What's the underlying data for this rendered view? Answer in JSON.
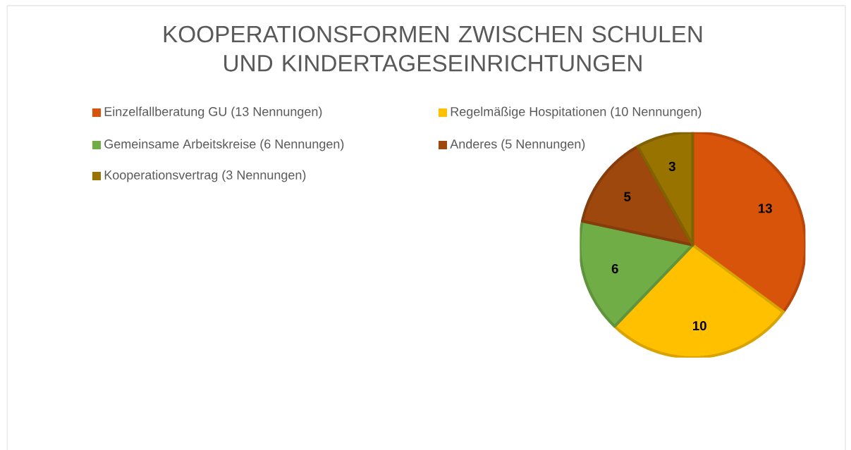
{
  "chart_data": {
    "type": "pie",
    "title": "KOOPERATIONSFORMEN ZWISCHEN SCHULEN UND KINDERTAGESEINRICHTUNGEN",
    "categories": [
      "Einzelfallberatung GU (13 Nennungen)",
      "Regelmäßige Hospitationen (10 Nennungen)",
      "Gemeinsame Arbeitskreise (6 Nennungen)",
      "Anderes (5 Nennungen)",
      "Kooperationsvertrag (3 Nennungen)"
    ],
    "values": [
      13,
      10,
      6,
      5,
      3
    ],
    "colors": [
      "#d9540b",
      "#ffc000",
      "#70ad47",
      "#9e480e",
      "#997300"
    ],
    "data_labels": true,
    "legend": "top"
  }
}
